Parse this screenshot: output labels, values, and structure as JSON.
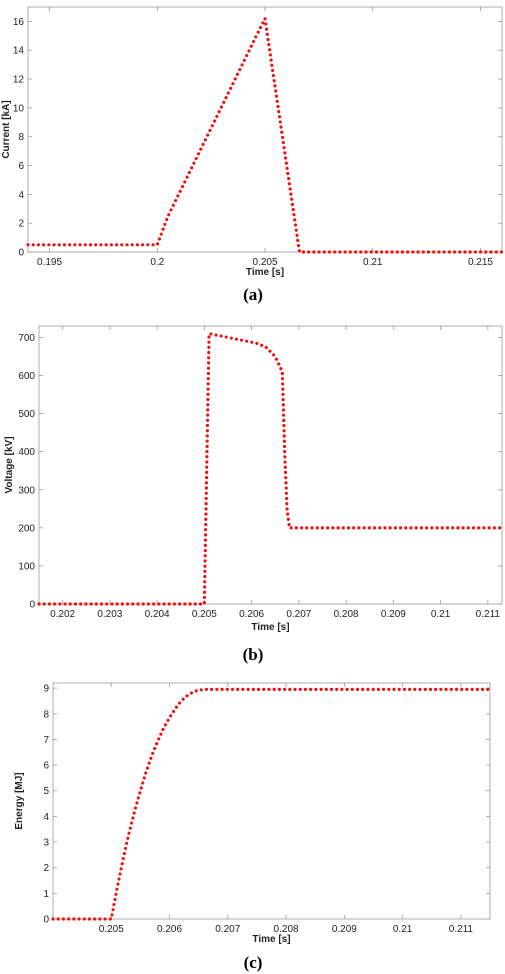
{
  "chart_data": [
    {
      "type": "line",
      "caption": "(a)",
      "xlabel": "Time [s]",
      "ylabel": "Current [kA]",
      "xlim": [
        0.194,
        0.216
      ],
      "ylim": [
        0,
        17
      ],
      "xticks": [
        0.195,
        0.2,
        0.205,
        0.21,
        0.215
      ],
      "xtick_labels": [
        "0.195",
        "0.2",
        "0.205",
        "0.21",
        "0.215"
      ],
      "yticks": [
        0,
        2,
        4,
        6,
        8,
        10,
        12,
        14,
        16
      ],
      "ytick_labels": [
        "0",
        "2",
        "4",
        "6",
        "8",
        "10",
        "12",
        "14",
        "16"
      ],
      "grid": false,
      "series": [
        {
          "color": "#ee1111",
          "style": "dotted",
          "x": [
            0.194,
            0.2,
            0.2005,
            0.2045,
            0.205,
            0.2066,
            0.216
          ],
          "y": [
            0.5,
            0.5,
            2.5,
            14.7,
            16.2,
            0,
            0
          ]
        }
      ]
    },
    {
      "type": "line",
      "caption": "(b)",
      "xlabel": "Time [s]",
      "ylabel": "Voltage [kV]",
      "xlim": [
        0.2015,
        0.2113
      ],
      "ylim": [
        0,
        730
      ],
      "xticks": [
        0.202,
        0.203,
        0.204,
        0.205,
        0.206,
        0.207,
        0.208,
        0.209,
        0.21,
        0.211
      ],
      "xtick_labels": [
        "0.202",
        "0.203",
        "0.204",
        "0.205",
        "0.206",
        "0.207",
        "0.208",
        "0.209",
        "0.21",
        "0.211"
      ],
      "yticks": [
        0,
        100,
        200,
        300,
        400,
        500,
        600,
        700
      ],
      "ytick_labels": [
        "0",
        "100",
        "200",
        "300",
        "400",
        "500",
        "600",
        "700"
      ],
      "grid": false,
      "series": [
        {
          "color": "#ee1111",
          "style": "dotted",
          "x": [
            0.2015,
            0.205,
            0.2051,
            0.2061,
            0.2063,
            0.2065,
            0.20665,
            0.2067,
            0.20675,
            0.2068,
            0.2113
          ],
          "y": [
            0,
            0,
            710,
            685,
            675,
            650,
            610,
            400,
            250,
            200,
            200
          ]
        }
      ]
    },
    {
      "type": "line",
      "caption": "(c)",
      "xlabel": "Time [s]",
      "ylabel": "Energy [MJ]",
      "xlim": [
        0.204,
        0.2115
      ],
      "ylim": [
        0,
        9.2
      ],
      "xticks": [
        0.205,
        0.206,
        0.207,
        0.208,
        0.209,
        0.21,
        0.211
      ],
      "xtick_labels": [
        "0.205",
        "0.206",
        "0.207",
        "0.208",
        "0.209",
        "0.21",
        "0.211"
      ],
      "yticks": [
        0,
        1,
        2,
        3,
        4,
        5,
        6,
        7,
        8,
        9
      ],
      "ytick_labels": [
        "0",
        "1",
        "2",
        "3",
        "4",
        "5",
        "6",
        "7",
        "8",
        "9"
      ],
      "grid": false,
      "series": [
        {
          "color": "#ee1111",
          "style": "dotted",
          "x": [
            0.204,
            0.205,
            0.2051,
            0.2052,
            0.2053,
            0.2054,
            0.2055,
            0.2056,
            0.2057,
            0.2058,
            0.2059,
            0.206,
            0.2061,
            0.2062,
            0.2063,
            0.2064,
            0.2065,
            0.2066,
            0.2067,
            0.2115
          ],
          "y": [
            0,
            0,
            1.2,
            2.3,
            3.3,
            4.2,
            5.0,
            5.75,
            6.4,
            6.95,
            7.45,
            7.85,
            8.2,
            8.5,
            8.7,
            8.85,
            8.92,
            8.95,
            8.95,
            8.95
          ]
        }
      ]
    }
  ]
}
